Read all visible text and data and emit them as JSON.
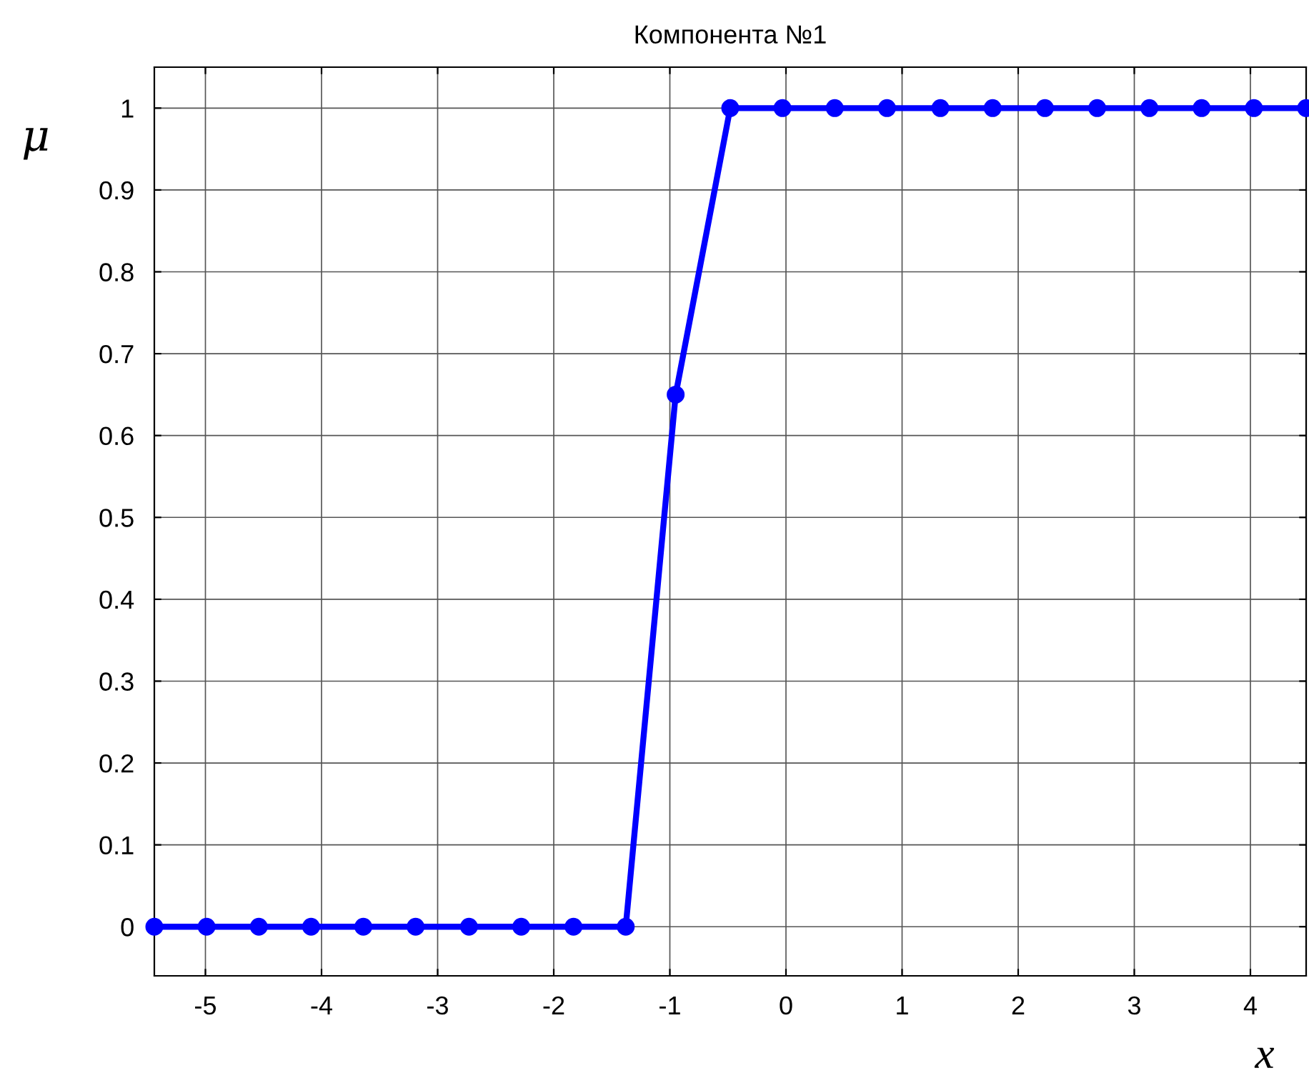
{
  "chart_data": {
    "type": "line",
    "title": "Компонента №1",
    "xlabel": "x",
    "ylabel": "μ",
    "x": [
      -5.44,
      -4.99,
      -4.54,
      -4.09,
      -3.64,
      -3.19,
      -2.73,
      -2.28,
      -1.83,
      -1.38,
      -0.95,
      -0.48,
      -0.03,
      0.42,
      0.87,
      1.33,
      1.78,
      2.23,
      2.68,
      3.13,
      3.58,
      4.03,
      4.48
    ],
    "series": [
      {
        "color": "#0000ff",
        "values": [
          0,
          0,
          0,
          0,
          0,
          0,
          0,
          0,
          0,
          0,
          0.65,
          1,
          1,
          1,
          1,
          1,
          1,
          1,
          1,
          1,
          1,
          1,
          1
        ]
      }
    ],
    "xlim": [
      -5.44,
      4.48
    ],
    "ylim": [
      -0.06,
      1.05
    ],
    "xticks": [
      -5,
      -4,
      -3,
      -2,
      -1,
      0,
      1,
      2,
      3,
      4
    ],
    "yticks": [
      0,
      0.1,
      0.2,
      0.3,
      0.4,
      0.5,
      0.6,
      0.7,
      0.8,
      0.9,
      1
    ],
    "grid": true,
    "marker": "circle",
    "line_style": "solid"
  }
}
